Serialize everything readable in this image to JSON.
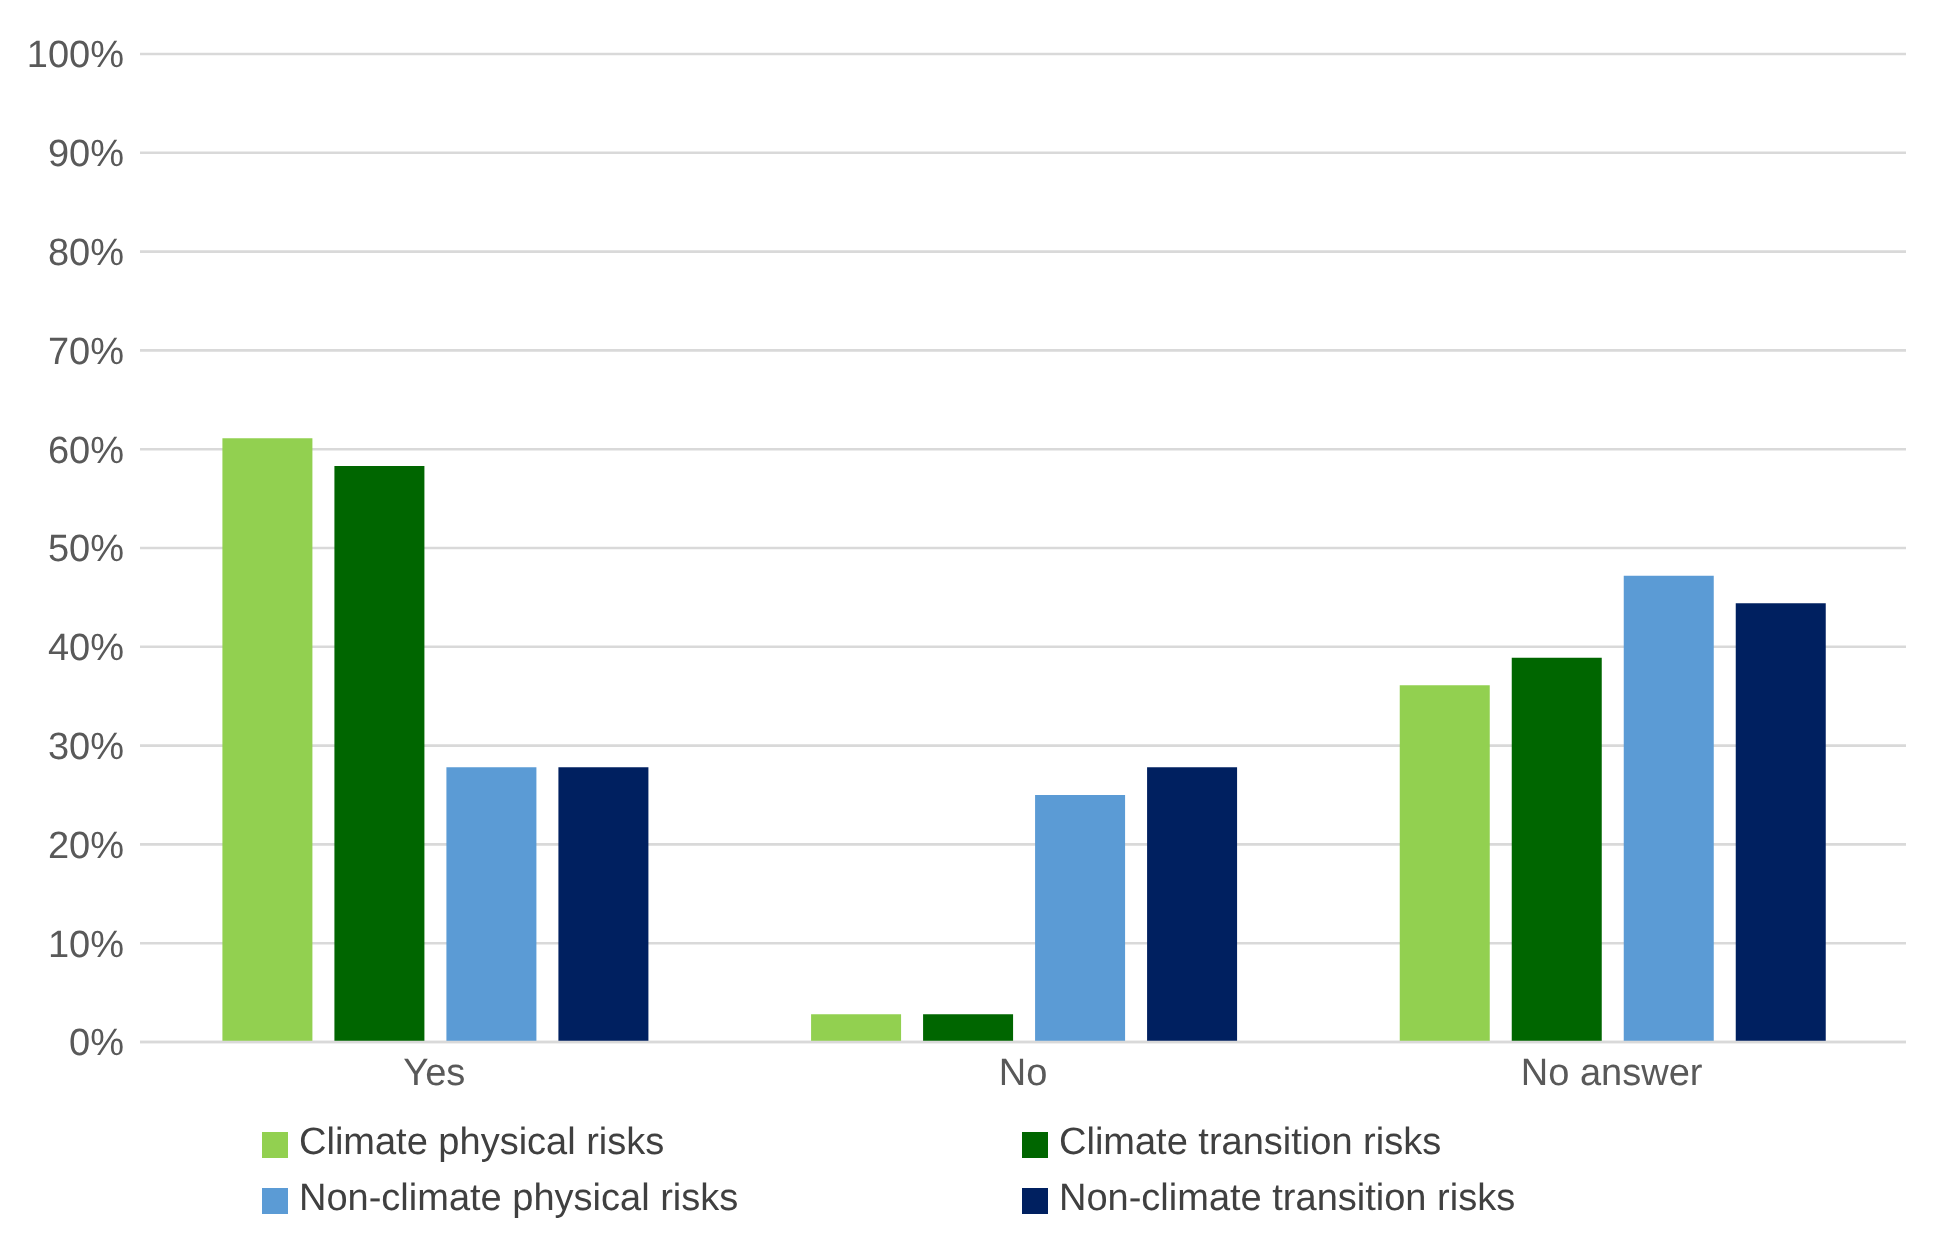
{
  "chart_data": {
    "type": "bar",
    "categories": [
      "Yes",
      "No",
      "No answer"
    ],
    "series": [
      {
        "name": "Climate physical risks",
        "color": "#92d050",
        "values": [
          61.1,
          2.8,
          36.1
        ]
      },
      {
        "name": "Climate transition risks",
        "color": "#006600",
        "values": [
          58.3,
          2.8,
          38.9
        ]
      },
      {
        "name": "Non-climate physical risks",
        "color": "#5b9bd5",
        "values": [
          27.8,
          25.0,
          47.2
        ]
      },
      {
        "name": "Non-climate transition risks",
        "color": "#002060",
        "values": [
          27.8,
          27.8,
          44.4
        ]
      }
    ],
    "ylim": [
      0,
      100
    ],
    "yticks": [
      {
        "value": 0,
        "label": "0%"
      },
      {
        "value": 10,
        "label": "10%"
      },
      {
        "value": 20,
        "label": "20%"
      },
      {
        "value": 30,
        "label": "30%"
      },
      {
        "value": 40,
        "label": "40%"
      },
      {
        "value": 50,
        "label": "50%"
      },
      {
        "value": 60,
        "label": "60%"
      },
      {
        "value": 70,
        "label": "70%"
      },
      {
        "value": 80,
        "label": "80%"
      },
      {
        "value": 90,
        "label": "90%"
      },
      {
        "value": 100,
        "label": "100%"
      }
    ],
    "grid": "y",
    "legend": "bottom"
  }
}
